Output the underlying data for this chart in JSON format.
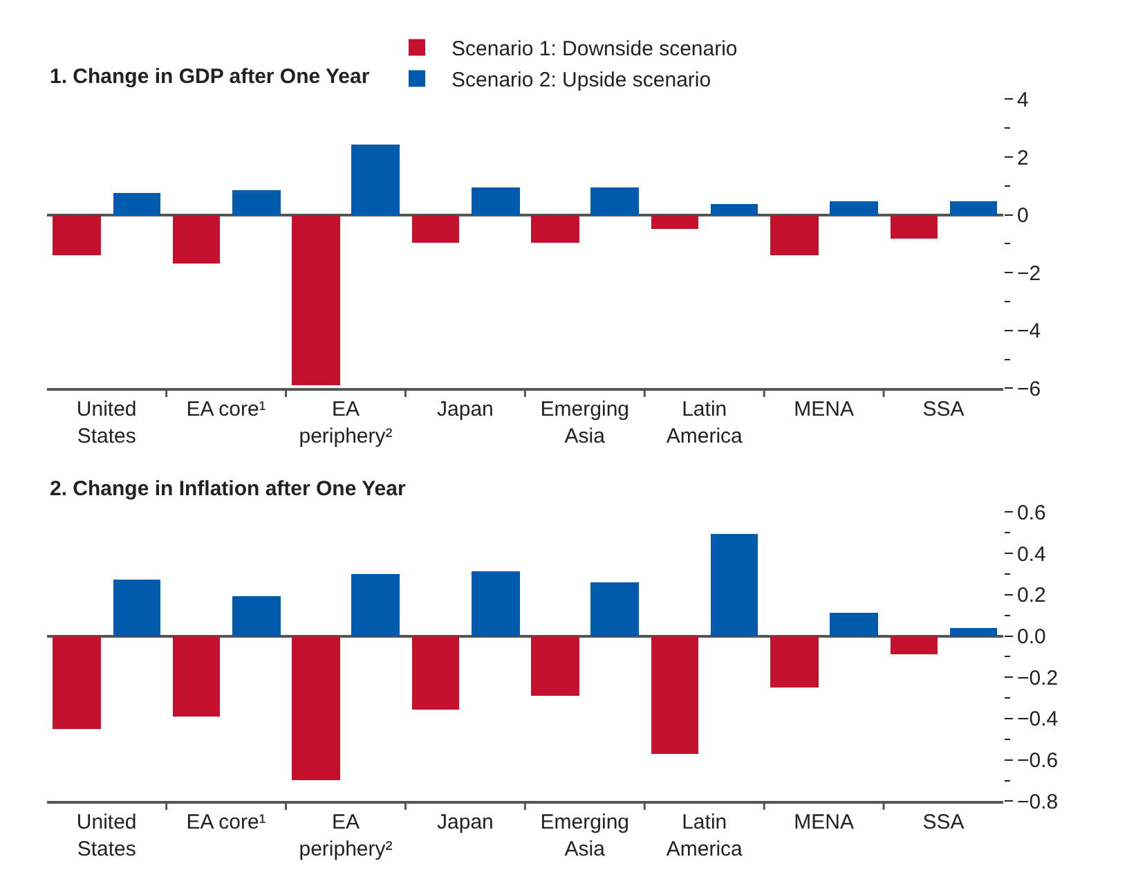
{
  "chart_data": [
    {
      "type": "bar",
      "title": "1. Change in GDP after One Year",
      "categories": [
        "United\nStates",
        "EA core¹",
        "EA\nperiphery²",
        "Japan",
        "Emerging\nAsia",
        "Latin\nAmerica",
        "MENA",
        "SSA"
      ],
      "series": [
        {
          "name": "Scenario 1: Downside scenario",
          "color": "#c3112e",
          "values": [
            -1.4,
            -1.7,
            -5.9,
            -1.0,
            -1.0,
            -0.5,
            -1.4,
            -0.85
          ]
        },
        {
          "name": "Scenario 2: Upside scenario",
          "color": "#005bac",
          "values": [
            0.76,
            0.85,
            2.4,
            0.95,
            0.95,
            0.37,
            0.45,
            0.45
          ]
        }
      ],
      "ylim": [
        -6,
        4
      ],
      "yticks": [
        -6,
        -4,
        -2,
        0,
        2,
        4
      ],
      "legend": "top"
    },
    {
      "type": "bar",
      "title": "2. Change in Inflation after One Year",
      "categories": [
        "United\nStates",
        "EA core¹",
        "EA\nperiphery²",
        "Japan",
        "Emerging\nAsia",
        "Latin\nAmerica",
        "MENA",
        "SSA"
      ],
      "series": [
        {
          "color": "#c3112e",
          "values": [
            -0.45,
            -0.39,
            -0.7,
            -0.36,
            -0.29,
            -0.57,
            -0.25,
            -0.09
          ]
        },
        {
          "color": "#005bac",
          "values": [
            0.27,
            0.19,
            0.3,
            0.31,
            0.26,
            0.49,
            0.11,
            0.04
          ]
        }
      ],
      "ylim": [
        -0.8,
        0.6
      ],
      "yticks": [
        -0.8,
        -0.6,
        -0.4,
        -0.2,
        {
          "value": 0,
          "label": "0.0"
        },
        0.2,
        0.4,
        0.6
      ],
      "legend": false
    }
  ]
}
